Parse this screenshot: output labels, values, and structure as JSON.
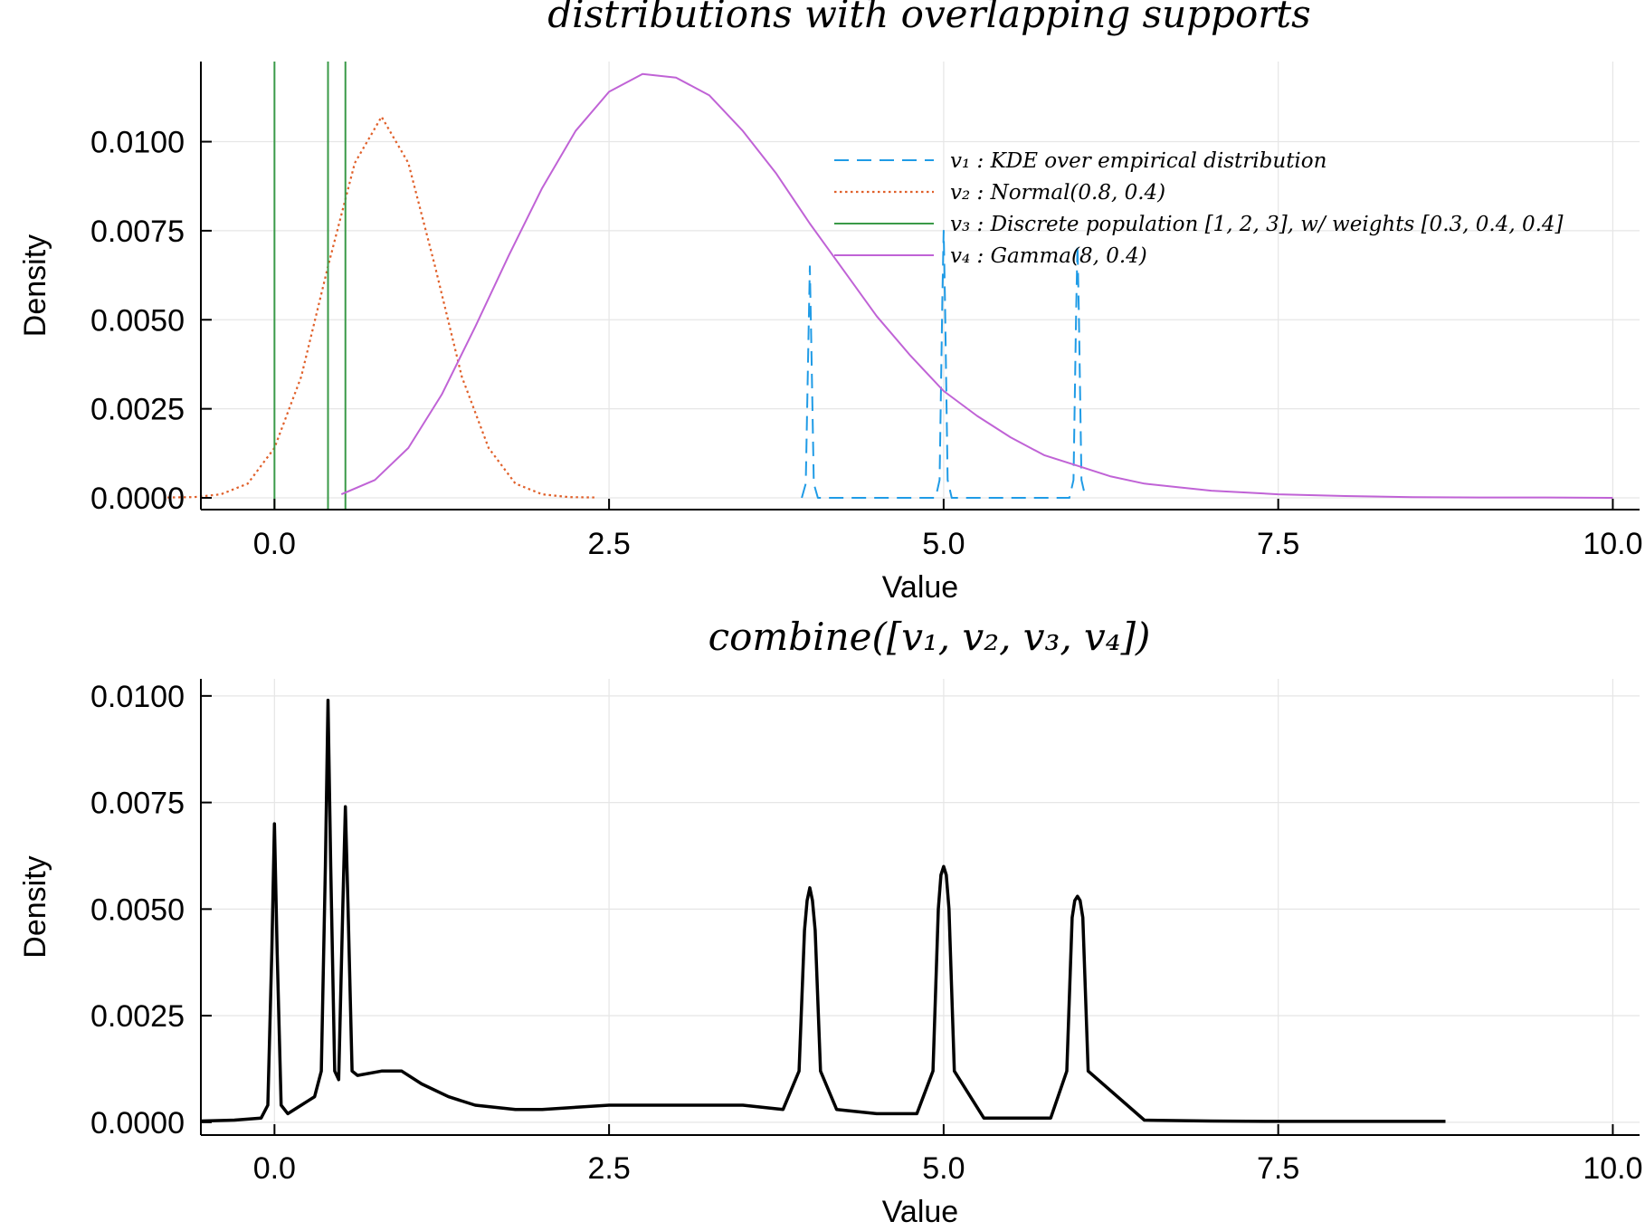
{
  "chart_data": [
    {
      "type": "line",
      "title": "distributions with overlapping supports",
      "xlabel": "Value",
      "ylabel": "Density",
      "xlim": [
        -0.55,
        10.2
      ],
      "ylim": [
        -0.00033,
        0.01225
      ],
      "x_ticks": [
        0.0,
        2.5,
        5.0,
        7.5,
        10.0
      ],
      "x_tick_labels": [
        "0.0",
        "2.5",
        "5.0",
        "7.5",
        "10.0"
      ],
      "y_ticks": [
        0.0,
        0.0025,
        0.005,
        0.0075,
        0.01
      ],
      "y_tick_labels": [
        "0.0000",
        "0.0025",
        "0.0050",
        "0.0075",
        "0.0100"
      ],
      "grid": true,
      "legend_position": "top-right",
      "series": [
        {
          "name": "v₁ : KDE over empirical distribution",
          "color": "#1f9be6",
          "style": "dashed",
          "x": [
            3.94,
            3.97,
            3.99,
            4.0,
            4.01,
            4.03,
            4.06,
            4.94,
            4.97,
            4.99,
            5.0,
            5.01,
            5.03,
            5.06,
            5.94,
            5.97,
            5.99,
            6.0,
            6.01,
            6.03,
            6.06
          ],
          "y": [
            0.0,
            0.0004,
            0.0045,
            0.0065,
            0.0045,
            0.0004,
            0.0,
            0.0,
            0.0005,
            0.0055,
            0.0075,
            0.0055,
            0.0005,
            0.0,
            0.0,
            0.0005,
            0.0052,
            0.0071,
            0.0052,
            0.0005,
            0.0
          ]
        },
        {
          "name": "v₂ : Normal(0.8, 0.4)",
          "color": "#e0602a",
          "style": "dotted",
          "x": [
            -0.8,
            -0.6,
            -0.4,
            -0.2,
            0.0,
            0.2,
            0.4,
            0.6,
            0.8,
            1.0,
            1.2,
            1.4,
            1.6,
            1.8,
            2.0,
            2.2,
            2.4
          ],
          "y": [
            1e-05,
            2e-05,
            0.0001,
            0.0004,
            0.0014,
            0.0034,
            0.0065,
            0.0094,
            0.0107,
            0.0094,
            0.0065,
            0.0034,
            0.0014,
            0.0004,
            0.0001,
            2e-05,
            1e-05
          ]
        },
        {
          "name": "v₃ : Discrete population [1, 2, 3], w/ weights [0.3, 0.4, 0.4]",
          "color": "#3a9a48",
          "style": "solid",
          "x_lines": [
            0.0,
            0.4,
            0.53
          ]
        },
        {
          "name": "v₄ : Gamma(8, 0.4)",
          "color": "#c063d6",
          "style": "solid",
          "x": [
            0.5,
            0.75,
            1.0,
            1.25,
            1.5,
            1.75,
            2.0,
            2.25,
            2.5,
            2.75,
            3.0,
            3.25,
            3.5,
            3.75,
            4.0,
            4.25,
            4.5,
            4.75,
            5.0,
            5.25,
            5.5,
            5.75,
            6.0,
            6.25,
            6.5,
            6.75,
            7.0,
            7.5,
            8.0,
            8.5,
            9.0,
            9.5,
            10.0
          ],
          "y": [
            0.0001,
            0.0005,
            0.0014,
            0.0029,
            0.0048,
            0.0068,
            0.0087,
            0.0103,
            0.0114,
            0.0119,
            0.0118,
            0.0113,
            0.0103,
            0.0091,
            0.0077,
            0.0064,
            0.0051,
            0.004,
            0.003,
            0.0023,
            0.0017,
            0.0012,
            0.0009,
            0.0006,
            0.0004,
            0.0003,
            0.0002,
            0.0001,
            5e-05,
            2e-05,
            1e-05,
            1e-05,
            0.0
          ]
        }
      ]
    },
    {
      "type": "line",
      "title": "combine([v₁, v₂, v₃, v₄])",
      "xlabel": "Value",
      "ylabel": "Density",
      "xlim": [
        -0.55,
        10.2
      ],
      "ylim": [
        -0.0003,
        0.0104
      ],
      "x_ticks": [
        0.0,
        2.5,
        5.0,
        7.5,
        10.0
      ],
      "x_tick_labels": [
        "0.0",
        "2.5",
        "5.0",
        "7.5",
        "10.0"
      ],
      "y_ticks": [
        0.0,
        0.0025,
        0.005,
        0.0075,
        0.01
      ],
      "y_tick_labels": [
        "0.0000",
        "0.0025",
        "0.0050",
        "0.0075",
        "0.0100"
      ],
      "grid": true,
      "series": [
        {
          "color": "#000000",
          "style": "solid",
          "x": [
            -0.55,
            -0.3,
            -0.1,
            -0.05,
            -0.02,
            0.0,
            0.02,
            0.05,
            0.1,
            0.2,
            0.25,
            0.3,
            0.35,
            0.38,
            0.4,
            0.42,
            0.45,
            0.48,
            0.51,
            0.53,
            0.55,
            0.58,
            0.62,
            0.8,
            0.95,
            1.1,
            1.3,
            1.5,
            1.8,
            2.0,
            2.5,
            3.0,
            3.5,
            3.8,
            3.92,
            3.96,
            3.98,
            4.0,
            4.02,
            4.04,
            4.08,
            4.2,
            4.5,
            4.8,
            4.92,
            4.96,
            4.98,
            5.0,
            5.02,
            5.04,
            5.08,
            5.3,
            5.8,
            5.92,
            5.96,
            5.98,
            6.0,
            6.02,
            6.04,
            6.08,
            6.5,
            7.0,
            7.5,
            8.0,
            8.75
          ],
          "y": [
            3e-05,
            5e-05,
            0.0001,
            0.0004,
            0.004,
            0.007,
            0.004,
            0.0004,
            0.0002,
            0.0004,
            0.0005,
            0.0006,
            0.0012,
            0.006,
            0.0099,
            0.006,
            0.0012,
            0.001,
            0.005,
            0.0074,
            0.005,
            0.0012,
            0.0011,
            0.0012,
            0.0012,
            0.0009,
            0.0006,
            0.0004,
            0.0003,
            0.0003,
            0.0004,
            0.0004,
            0.0004,
            0.0003,
            0.0012,
            0.0045,
            0.0052,
            0.0055,
            0.0052,
            0.0045,
            0.0012,
            0.0003,
            0.0002,
            0.0002,
            0.0012,
            0.005,
            0.0058,
            0.006,
            0.0058,
            0.005,
            0.0012,
            0.0001,
            0.0001,
            0.0012,
            0.0048,
            0.0052,
            0.0053,
            0.0052,
            0.0048,
            0.0012,
            5e-05,
            3e-05,
            2e-05,
            2e-05,
            2e-05
          ]
        }
      ]
    }
  ]
}
